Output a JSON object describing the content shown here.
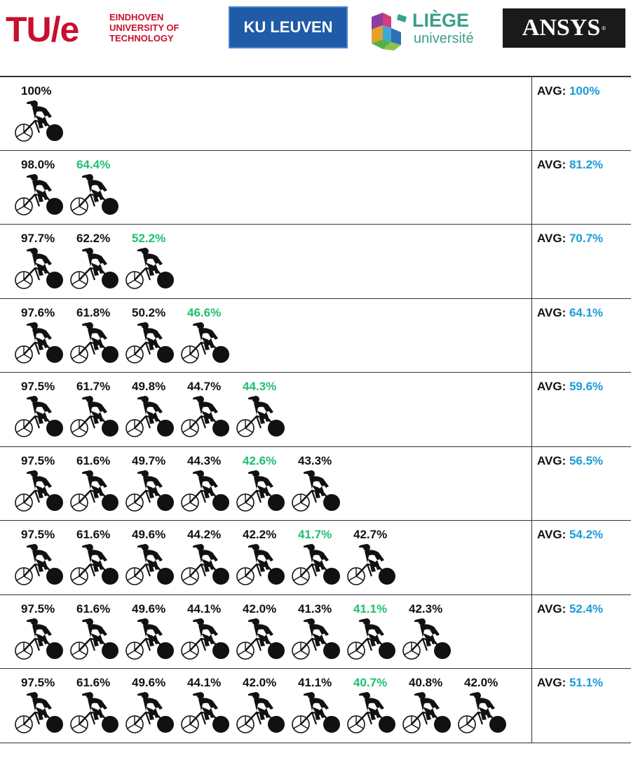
{
  "logos": {
    "tue": {
      "mark": "TU/e",
      "lines": [
        "EINDHOVEN",
        "UNIVERSITY OF",
        "TECHNOLOGY"
      ]
    },
    "kuleuven": "KU LEUVEN",
    "liege": {
      "name": "LIÈGE",
      "sub": "université"
    },
    "ansys": {
      "name": "ANSYS",
      "reg": "®"
    }
  },
  "colors": {
    "leader_green": "#1fbf6e",
    "avg_blue": "#1b9bd7",
    "tue_red": "#c8102e",
    "kul_blue": "#1f5ba6",
    "liege_teal": "#3a9f8c"
  },
  "avg_label": "AVG: ",
  "icon": "cyclist-icon",
  "rows": [
    {
      "values": [
        "100%"
      ],
      "leader": -1,
      "avg": "100%"
    },
    {
      "values": [
        "98.0%",
        "64.4%"
      ],
      "leader": 1,
      "avg": "81.2%"
    },
    {
      "values": [
        "97.7%",
        "62.2%",
        "52.2%"
      ],
      "leader": 2,
      "avg": "70.7%"
    },
    {
      "values": [
        "97.6%",
        "61.8%",
        "50.2%",
        "46.6%"
      ],
      "leader": 3,
      "avg": "64.1%"
    },
    {
      "values": [
        "97.5%",
        "61.7%",
        "49.8%",
        "44.7%",
        "44.3%"
      ],
      "leader": 4,
      "avg": "59.6%"
    },
    {
      "values": [
        "97.5%",
        "61.6%",
        "49.7%",
        "44.3%",
        "42.6%",
        "43.3%"
      ],
      "leader": 4,
      "avg": "56.5%"
    },
    {
      "values": [
        "97.5%",
        "61.6%",
        "49.6%",
        "44.2%",
        "42.2%",
        "41.7%",
        "42.7%"
      ],
      "leader": 5,
      "avg": "54.2%"
    },
    {
      "values": [
        "97.5%",
        "61.6%",
        "49.6%",
        "44.1%",
        "42.0%",
        "41.3%",
        "41.1%",
        "42.3%"
      ],
      "leader": 6,
      "avg": "52.4%"
    },
    {
      "values": [
        "97.5%",
        "61.6%",
        "49.6%",
        "44.1%",
        "42.0%",
        "41.1%",
        "40.7%",
        "40.8%",
        "42.0%"
      ],
      "leader": 6,
      "avg": "51.1%"
    }
  ]
}
